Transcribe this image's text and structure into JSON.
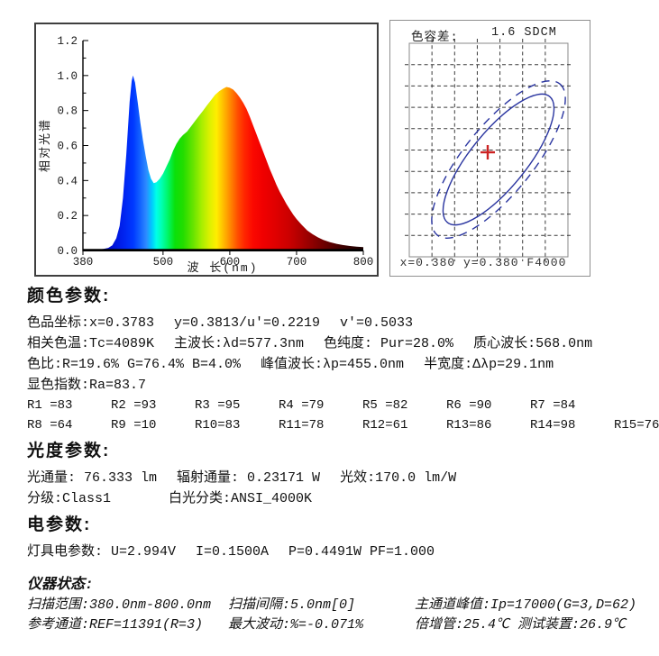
{
  "chart_data": [
    {
      "type": "area",
      "title": "",
      "xlabel": "波 长(nm)",
      "ylabel": "相对光谱",
      "xlim": [
        380,
        800
      ],
      "ylim": [
        0,
        1.2
      ],
      "xticks": [
        "380",
        "500",
        "600",
        "700",
        "800"
      ],
      "yticks": [
        "0.0",
        "0.2",
        "0.4",
        "0.6",
        "0.8",
        "1.0",
        "1.2"
      ],
      "grid": "off",
      "points": [
        [
          380,
          0.005
        ],
        [
          400,
          0.005
        ],
        [
          410,
          0.008
        ],
        [
          418,
          0.015
        ],
        [
          424,
          0.03
        ],
        [
          430,
          0.07
        ],
        [
          435,
          0.14
        ],
        [
          440,
          0.3
        ],
        [
          445,
          0.55
        ],
        [
          450,
          0.85
        ],
        [
          453,
          0.97
        ],
        [
          455,
          1.0
        ],
        [
          458,
          0.96
        ],
        [
          462,
          0.85
        ],
        [
          466,
          0.73
        ],
        [
          470,
          0.63
        ],
        [
          474,
          0.54
        ],
        [
          478,
          0.46
        ],
        [
          482,
          0.41
        ],
        [
          486,
          0.385
        ],
        [
          490,
          0.39
        ],
        [
          495,
          0.41
        ],
        [
          500,
          0.44
        ],
        [
          505,
          0.48
        ],
        [
          510,
          0.52
        ],
        [
          515,
          0.57
        ],
        [
          520,
          0.61
        ],
        [
          525,
          0.64
        ],
        [
          530,
          0.66
        ],
        [
          536,
          0.68
        ],
        [
          542,
          0.71
        ],
        [
          548,
          0.74
        ],
        [
          554,
          0.77
        ],
        [
          560,
          0.8
        ],
        [
          566,
          0.83
        ],
        [
          572,
          0.86
        ],
        [
          578,
          0.89
        ],
        [
          584,
          0.91
        ],
        [
          590,
          0.925
        ],
        [
          595,
          0.935
        ],
        [
          600,
          0.93
        ],
        [
          605,
          0.92
        ],
        [
          610,
          0.9
        ],
        [
          615,
          0.875
        ],
        [
          620,
          0.845
        ],
        [
          625,
          0.81
        ],
        [
          630,
          0.765
        ],
        [
          635,
          0.715
        ],
        [
          640,
          0.665
        ],
        [
          645,
          0.615
        ],
        [
          650,
          0.565
        ],
        [
          655,
          0.515
        ],
        [
          660,
          0.465
        ],
        [
          665,
          0.42
        ],
        [
          670,
          0.375
        ],
        [
          675,
          0.335
        ],
        [
          680,
          0.3
        ],
        [
          685,
          0.265
        ],
        [
          690,
          0.235
        ],
        [
          695,
          0.205
        ],
        [
          700,
          0.18
        ],
        [
          708,
          0.145
        ],
        [
          716,
          0.115
        ],
        [
          724,
          0.093
        ],
        [
          732,
          0.075
        ],
        [
          740,
          0.06
        ],
        [
          750,
          0.048
        ],
        [
          760,
          0.038
        ],
        [
          770,
          0.031
        ],
        [
          780,
          0.026
        ],
        [
          790,
          0.022
        ],
        [
          800,
          0.019
        ]
      ],
      "wavelength_colors": [
        [
          380,
          "#000028"
        ],
        [
          415,
          "#0008c8"
        ],
        [
          440,
          "#0022ee"
        ],
        [
          455,
          "#0038ff"
        ],
        [
          465,
          "#1160ff"
        ],
        [
          475,
          "#2e8bff"
        ],
        [
          483,
          "#00c8ff"
        ],
        [
          490,
          "#00ffe8"
        ],
        [
          498,
          "#00ffb0"
        ],
        [
          508,
          "#00f560"
        ],
        [
          518,
          "#0ae00a"
        ],
        [
          530,
          "#22dd00"
        ],
        [
          545,
          "#66e400"
        ],
        [
          558,
          "#a8ee00"
        ],
        [
          570,
          "#ddf000"
        ],
        [
          580,
          "#ffee00"
        ],
        [
          588,
          "#ffc800"
        ],
        [
          596,
          "#ffa000"
        ],
        [
          604,
          "#ff7700"
        ],
        [
          612,
          "#ff4d00"
        ],
        [
          622,
          "#ff2600"
        ],
        [
          635,
          "#fb0800"
        ],
        [
          650,
          "#f00000"
        ],
        [
          668,
          "#e00000"
        ],
        [
          688,
          "#cc0000"
        ],
        [
          705,
          "#b00000"
        ],
        [
          725,
          "#8b0000"
        ],
        [
          745,
          "#660000"
        ],
        [
          765,
          "#440000"
        ],
        [
          785,
          "#2a0000"
        ],
        [
          800,
          "#1c0000"
        ]
      ]
    },
    {
      "type": "scatter",
      "title_label": "色容差:",
      "title_value": "1.6 SDCM",
      "footer": "x=0.380 y=0.380 F4000",
      "point": {
        "x": 0.3783,
        "y": 0.3813,
        "marker": "+"
      },
      "grid": {
        "cols": 7,
        "rows": 10
      },
      "sdcm_ellipses": [
        {
          "style": "solid",
          "a": 90,
          "b": 31,
          "angle": -51
        },
        {
          "style": "dashed",
          "a": 108,
          "b": 38,
          "angle": -51
        }
      ],
      "colors": {
        "ellipse": "#2a35a0",
        "cross": "#cc2222",
        "grid": "#3a3a3a",
        "frame": "#8a8a8a"
      }
    }
  ],
  "sections": [
    {
      "id": "color_params",
      "title": "颜色参数:",
      "lines": [
        [
          "色品坐标:x=0.3783",
          "y=0.3813/u'=0.2219",
          "v'=0.5033"
        ],
        [
          "相关色温:Tc=4089K",
          "主波长:λd=577.3nm",
          "色纯度: Pur=28.0%",
          "质心波长:568.0nm"
        ],
        [
          "色比:R=19.6% G=76.4% B=4.0%",
          "峰值波长:λp=455.0nm",
          "半宽度:Δλp=29.1nm"
        ],
        [
          "显色指数:Ra=83.7"
        ]
      ],
      "cri": {
        "row1": [
          "R1 =83",
          "R2 =93",
          "R3 =95",
          "R4 =79",
          "R5 =82",
          "R6 =90",
          "R7 =84"
        ],
        "row2": [
          "R8 =64",
          "R9 =10",
          "R10=83",
          "R11=78",
          "R12=61",
          "R13=86",
          "R14=98",
          "R15=76"
        ]
      }
    },
    {
      "id": "photometric",
      "title": "光度参数:",
      "lines": [
        [
          "光通量: 76.333 lm",
          "辐射通量: 0.23171 W",
          "光效:170.0 lm/W"
        ],
        [
          "分级:Class1",
          "白光分类:ANSI_4000K"
        ]
      ]
    },
    {
      "id": "electrical",
      "title": "电参数:",
      "lines": [
        [
          "灯具电参数: U=2.994V",
          "I=0.1500A",
          "P=0.4491W PF=1.000"
        ]
      ]
    }
  ],
  "instrument": {
    "title": "仪器状态:",
    "rows": [
      [
        "扫描范围:380.0nm-800.0nm",
        "扫描间隔:5.0nm[0]",
        "主通道峰值:Ip=17000(G=3,D=62)"
      ],
      [
        "参考通道:REF=11391(R=3)",
        "最大波动:%=-0.071%",
        "倍增管:25.4℃ 测试装置:26.9℃"
      ]
    ]
  }
}
